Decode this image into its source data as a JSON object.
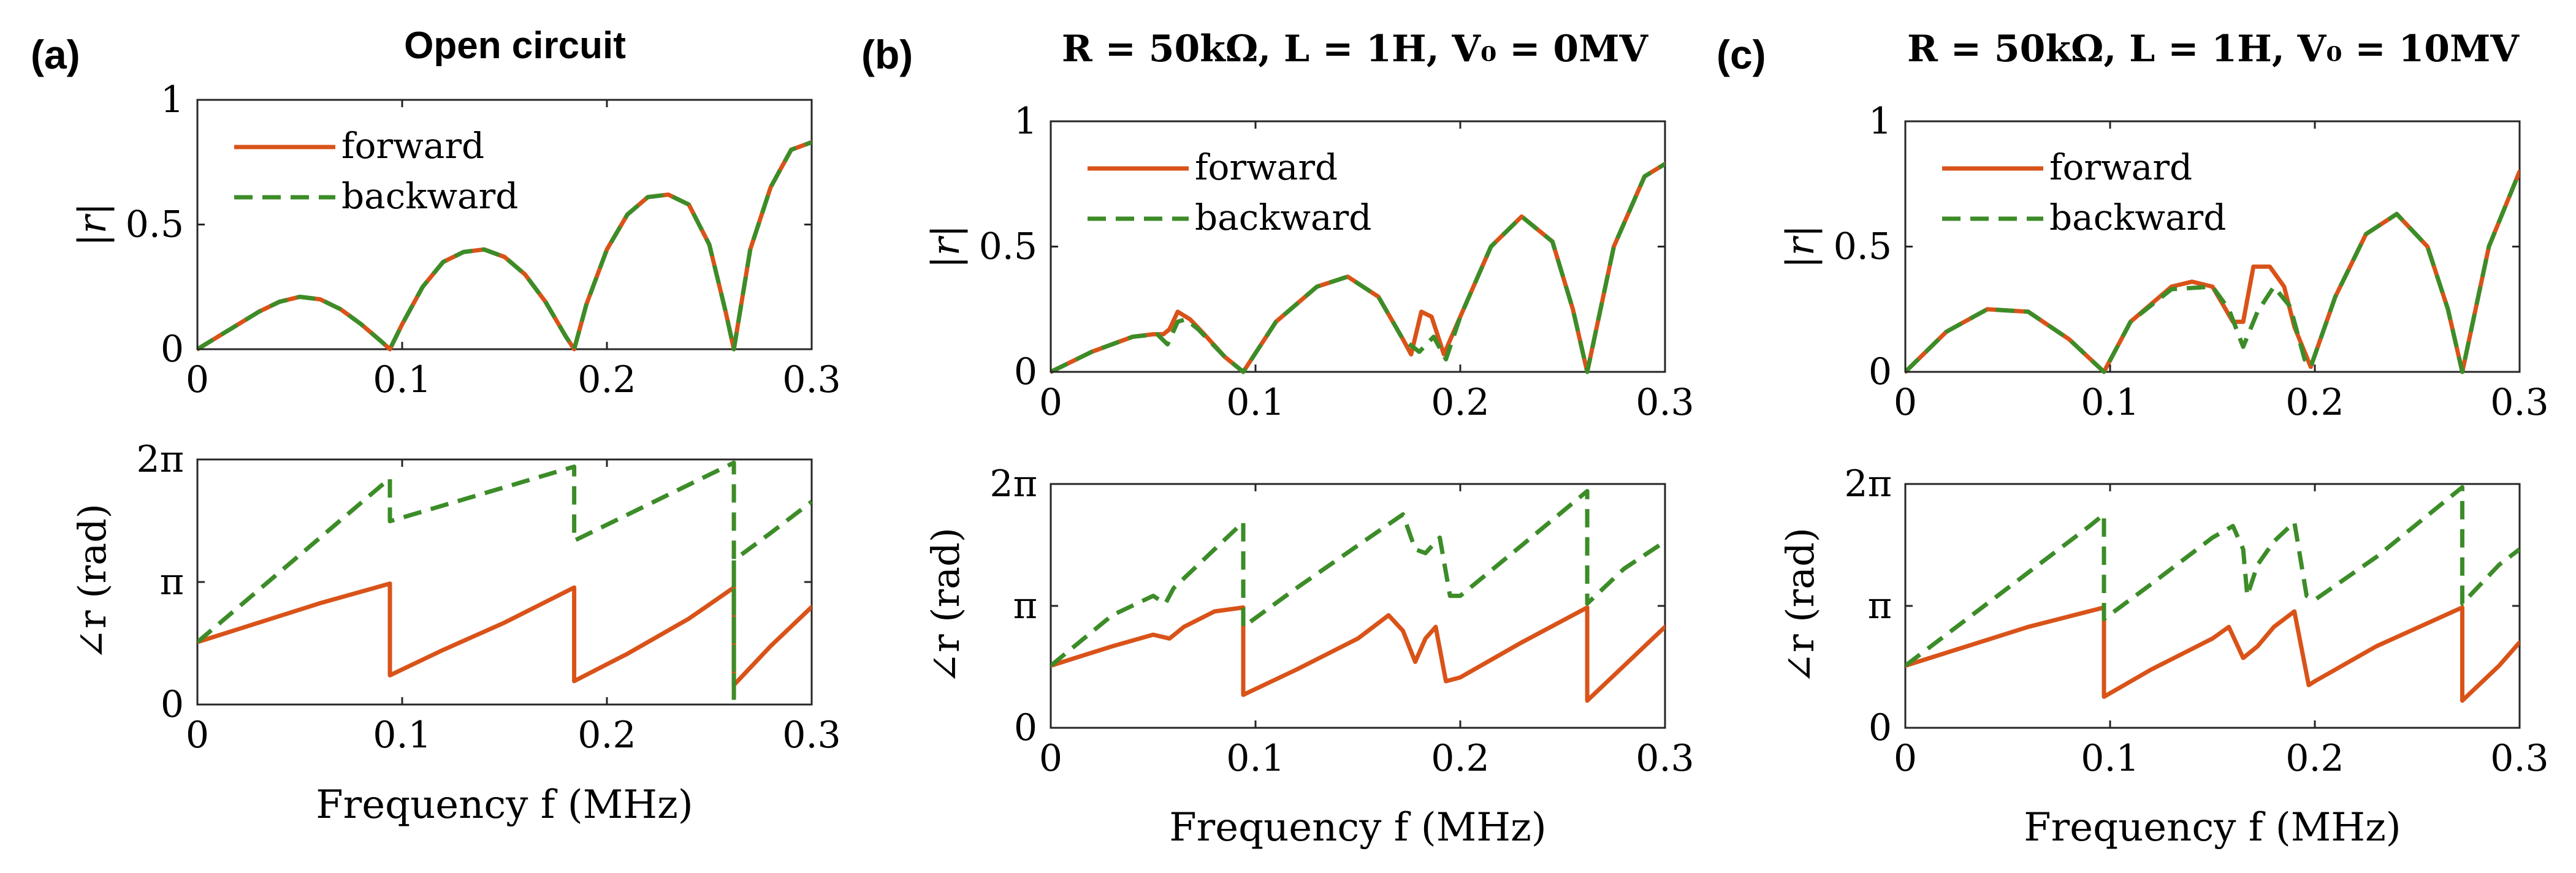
{
  "colors": {
    "forward": "#D95319",
    "backward": "#3C8C28",
    "axis": "#262626",
    "text": "#000000"
  },
  "chart_data": [
    {
      "type": "line",
      "panel_label": "(a)",
      "title": "Open circuit",
      "subplots": [
        {
          "kind": "magnitude",
          "xlabel": "",
          "ylabel": "|r|",
          "xlim": [
            0,
            0.3
          ],
          "ylim": [
            0,
            1
          ],
          "xticks": [
            "0",
            "0.1",
            "0.2",
            "0.3"
          ],
          "yticks": [
            "0",
            "0.5",
            "1"
          ],
          "legend": {
            "position": "top-left",
            "entries": [
              "forward",
              "backward"
            ]
          },
          "series": [
            {
              "name": "forward",
              "style": "solid",
              "x": [
                0,
                0.01,
                0.02,
                0.03,
                0.04,
                0.05,
                0.06,
                0.07,
                0.08,
                0.09,
                0.094,
                0.1,
                0.11,
                0.12,
                0.13,
                0.14,
                0.15,
                0.16,
                0.17,
                0.18,
                0.184,
                0.19,
                0.2,
                0.21,
                0.22,
                0.23,
                0.24,
                0.25,
                0.258,
                0.262,
                0.27,
                0.28,
                0.29,
                0.3
              ],
              "y": [
                0,
                0.05,
                0.1,
                0.15,
                0.19,
                0.21,
                0.2,
                0.16,
                0.1,
                0.03,
                0,
                0.1,
                0.25,
                0.35,
                0.39,
                0.4,
                0.37,
                0.3,
                0.19,
                0.05,
                0,
                0.18,
                0.4,
                0.54,
                0.61,
                0.62,
                0.58,
                0.42,
                0.15,
                0,
                0.4,
                0.65,
                0.8,
                0.83
              ]
            },
            {
              "name": "backward",
              "style": "dashed",
              "x": [
                0,
                0.01,
                0.02,
                0.03,
                0.04,
                0.05,
                0.06,
                0.07,
                0.08,
                0.09,
                0.094,
                0.1,
                0.11,
                0.12,
                0.13,
                0.14,
                0.15,
                0.16,
                0.17,
                0.18,
                0.184,
                0.19,
                0.2,
                0.21,
                0.22,
                0.23,
                0.24,
                0.25,
                0.258,
                0.262,
                0.27,
                0.28,
                0.29,
                0.3
              ],
              "y": [
                0,
                0.05,
                0.1,
                0.15,
                0.19,
                0.21,
                0.2,
                0.16,
                0.1,
                0.03,
                0,
                0.1,
                0.25,
                0.35,
                0.39,
                0.4,
                0.37,
                0.3,
                0.19,
                0.05,
                0,
                0.18,
                0.4,
                0.54,
                0.61,
                0.62,
                0.58,
                0.42,
                0.15,
                0,
                0.4,
                0.65,
                0.8,
                0.83
              ]
            }
          ]
        },
        {
          "kind": "phase",
          "xlabel": "Frequency f (MHz)",
          "ylabel": "∠r (rad)",
          "xlim": [
            0,
            0.3
          ],
          "ylim": [
            0,
            6.283
          ],
          "xticks": [
            "0",
            "0.1",
            "0.2",
            "0.3"
          ],
          "yticks": [
            "0",
            "π",
            "2π"
          ],
          "series": [
            {
              "name": "forward",
              "style": "solid",
              "x": [
                0,
                0.03,
                0.06,
                0.094,
                0.094,
                0.12,
                0.15,
                0.184,
                0.184,
                0.21,
                0.24,
                0.262,
                0.262,
                0.28,
                0.3
              ],
              "y": [
                1.6,
                2.1,
                2.6,
                3.1,
                0.75,
                1.4,
                2.1,
                3.0,
                0.6,
                1.3,
                2.2,
                3.0,
                0.5,
                1.5,
                2.5
              ]
            },
            {
              "name": "backward",
              "style": "dashed",
              "x": [
                0,
                0.094,
                0.094,
                0.184,
                0.184,
                0.262,
                0.262,
                0.262,
                0.28,
                0.3
              ],
              "y": [
                1.6,
                5.8,
                4.7,
                6.1,
                4.2,
                6.2,
                0.1,
                3.7,
                4.4,
                5.2
              ]
            }
          ]
        }
      ]
    },
    {
      "type": "line",
      "panel_label": "(b)",
      "title": "R = 50kΩ, L = 1H, V₀ = 0MV",
      "subplots": [
        {
          "kind": "magnitude",
          "xlabel": "",
          "ylabel": "|r|",
          "xlim": [
            0,
            0.3
          ],
          "ylim": [
            0,
            1
          ],
          "xticks": [
            "0",
            "0.1",
            "0.2",
            "0.3"
          ],
          "yticks": [
            "0",
            "0.5",
            "1"
          ],
          "legend": {
            "position": "top-left",
            "entries": [
              "forward",
              "backward"
            ]
          },
          "series": [
            {
              "name": "forward",
              "style": "solid",
              "x": [
                0,
                0.02,
                0.04,
                0.05,
                0.055,
                0.058,
                0.062,
                0.068,
                0.075,
                0.085,
                0.094,
                0.11,
                0.13,
                0.145,
                0.16,
                0.172,
                0.176,
                0.181,
                0.186,
                0.192,
                0.2,
                0.215,
                0.23,
                0.245,
                0.255,
                0.262,
                0.275,
                0.29,
                0.3
              ],
              "y": [
                0,
                0.08,
                0.14,
                0.15,
                0.15,
                0.17,
                0.24,
                0.21,
                0.15,
                0.06,
                0,
                0.2,
                0.34,
                0.38,
                0.3,
                0.13,
                0.07,
                0.24,
                0.22,
                0.07,
                0.22,
                0.5,
                0.62,
                0.52,
                0.25,
                0,
                0.5,
                0.78,
                0.83
              ]
            },
            {
              "name": "backward",
              "style": "dashed",
              "x": [
                0,
                0.02,
                0.04,
                0.052,
                0.057,
                0.062,
                0.066,
                0.072,
                0.085,
                0.094,
                0.11,
                0.13,
                0.145,
                0.16,
                0.172,
                0.18,
                0.187,
                0.193,
                0.2,
                0.215,
                0.23,
                0.245,
                0.255,
                0.262,
                0.275,
                0.29,
                0.3
              ],
              "y": [
                0,
                0.08,
                0.14,
                0.15,
                0.11,
                0.2,
                0.21,
                0.17,
                0.06,
                0,
                0.2,
                0.34,
                0.38,
                0.3,
                0.13,
                0.08,
                0.14,
                0.05,
                0.22,
                0.5,
                0.62,
                0.52,
                0.25,
                0,
                0.5,
                0.78,
                0.83
              ]
            }
          ]
        },
        {
          "kind": "phase",
          "xlabel": "Frequency f (MHz)",
          "ylabel": "∠r (rad)",
          "xlim": [
            0,
            0.3
          ],
          "ylim": [
            0,
            6.283
          ],
          "xticks": [
            "0",
            "0.1",
            "0.2",
            "0.3"
          ],
          "yticks": [
            "0",
            "π",
            "2π"
          ],
          "series": [
            {
              "name": "forward",
              "style": "solid",
              "x": [
                0,
                0.03,
                0.05,
                0.058,
                0.065,
                0.08,
                0.094,
                0.094,
                0.12,
                0.15,
                0.165,
                0.172,
                0.178,
                0.183,
                0.188,
                0.193,
                0.2,
                0.23,
                0.262,
                0.262,
                0.28,
                0.3
              ],
              "y": [
                1.6,
                2.1,
                2.4,
                2.3,
                2.6,
                3.0,
                3.1,
                0.85,
                1.5,
                2.3,
                2.9,
                2.5,
                1.7,
                2.3,
                2.6,
                1.2,
                1.3,
                2.2,
                3.1,
                0.7,
                1.6,
                2.6
              ]
            },
            {
              "name": "backward",
              "style": "dashed",
              "x": [
                0,
                0.03,
                0.05,
                0.056,
                0.06,
                0.08,
                0.094,
                0.094,
                0.12,
                0.15,
                0.172,
                0.178,
                0.183,
                0.19,
                0.195,
                0.2,
                0.23,
                0.262,
                0.262,
                0.28,
                0.3
              ],
              "y": [
                1.6,
                2.9,
                3.4,
                3.2,
                3.6,
                4.6,
                5.3,
                2.6,
                3.6,
                4.7,
                5.5,
                4.6,
                4.5,
                4.9,
                3.4,
                3.4,
                4.7,
                6.1,
                3.2,
                4.1,
                4.8
              ]
            }
          ]
        }
      ]
    },
    {
      "type": "line",
      "panel_label": "(c)",
      "title": "R = 50kΩ, L = 1H, V₀ = 10MV",
      "subplots": [
        {
          "kind": "magnitude",
          "xlabel": "",
          "ylabel": "|r|",
          "xlim": [
            0,
            0.3
          ],
          "ylim": [
            0,
            1
          ],
          "xticks": [
            "0",
            "0.1",
            "0.2",
            "0.3"
          ],
          "yticks": [
            "0",
            "0.5",
            "1"
          ],
          "legend": {
            "position": "top-left",
            "entries": [
              "forward",
              "backward"
            ]
          },
          "series": [
            {
              "name": "forward",
              "style": "solid",
              "x": [
                0,
                0.02,
                0.04,
                0.06,
                0.08,
                0.097,
                0.11,
                0.13,
                0.14,
                0.15,
                0.16,
                0.165,
                0.17,
                0.178,
                0.185,
                0.19,
                0.198,
                0.21,
                0.225,
                0.24,
                0.255,
                0.265,
                0.272,
                0.285,
                0.3
              ],
              "y": [
                0,
                0.16,
                0.25,
                0.24,
                0.13,
                0,
                0.2,
                0.34,
                0.36,
                0.34,
                0.2,
                0.2,
                0.42,
                0.42,
                0.34,
                0.18,
                0.02,
                0.3,
                0.55,
                0.63,
                0.5,
                0.25,
                0,
                0.5,
                0.8
              ]
            },
            {
              "name": "backward",
              "style": "dashed",
              "x": [
                0,
                0.02,
                0.04,
                0.06,
                0.08,
                0.097,
                0.11,
                0.13,
                0.15,
                0.158,
                0.165,
                0.172,
                0.18,
                0.188,
                0.195,
                0.198,
                0.21,
                0.225,
                0.24,
                0.255,
                0.265,
                0.272,
                0.285,
                0.3
              ],
              "y": [
                0,
                0.16,
                0.25,
                0.24,
                0.13,
                0,
                0.2,
                0.33,
                0.34,
                0.25,
                0.1,
                0.24,
                0.34,
                0.26,
                0.05,
                0.02,
                0.3,
                0.55,
                0.63,
                0.5,
                0.25,
                0,
                0.5,
                0.8
              ]
            }
          ]
        },
        {
          "kind": "phase",
          "xlabel": "Frequency f (MHz)",
          "ylabel": "∠r (rad)",
          "xlim": [
            0,
            0.3
          ],
          "ylim": [
            0,
            6.283
          ],
          "xticks": [
            "0",
            "0.1",
            "0.2",
            "0.3"
          ],
          "yticks": [
            "0",
            "π",
            "2π"
          ],
          "series": [
            {
              "name": "forward",
              "style": "solid",
              "x": [
                0,
                0.03,
                0.06,
                0.097,
                0.097,
                0.12,
                0.15,
                0.158,
                0.165,
                0.172,
                0.18,
                0.19,
                0.197,
                0.2,
                0.23,
                0.272,
                0.272,
                0.29,
                0.3
              ],
              "y": [
                1.6,
                2.1,
                2.6,
                3.1,
                0.8,
                1.5,
                2.3,
                2.6,
                1.8,
                2.1,
                2.6,
                3.0,
                1.1,
                1.2,
                2.1,
                3.1,
                0.7,
                1.6,
                2.2
              ]
            },
            {
              "name": "backward",
              "style": "dashed",
              "x": [
                0,
                0.03,
                0.06,
                0.09,
                0.097,
                0.097,
                0.12,
                0.15,
                0.16,
                0.165,
                0.167,
                0.172,
                0.18,
                0.19,
                0.196,
                0.2,
                0.23,
                0.272,
                0.272,
                0.29,
                0.3
              ],
              "y": [
                1.6,
                2.8,
                4.0,
                5.2,
                5.5,
                2.8,
                3.7,
                4.9,
                5.2,
                4.6,
                3.4,
                4.2,
                4.8,
                5.3,
                3.4,
                3.3,
                4.4,
                6.2,
                3.2,
                4.2,
                4.6
              ]
            }
          ]
        }
      ]
    }
  ]
}
